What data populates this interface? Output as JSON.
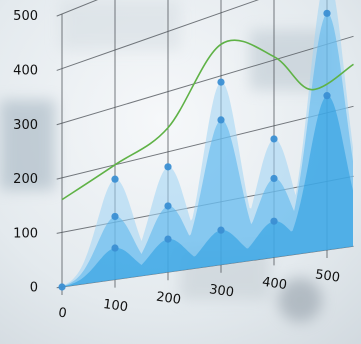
{
  "chart_data": {
    "type": "area",
    "title": "",
    "xlabel": "",
    "ylabel": "",
    "x_ticks": [
      0,
      100,
      200,
      300,
      400,
      500
    ],
    "y_ticks": [
      0,
      100,
      200,
      300,
      400,
      500
    ],
    "xlim": [
      0,
      550
    ],
    "ylim": [
      0,
      500
    ],
    "grid": true,
    "legend": "none",
    "series": [
      {
        "values": [
          [
            0,
            0
          ],
          [
            100,
            175
          ],
          [
            200,
            175
          ],
          [
            300,
            290
          ],
          [
            400,
            180
          ],
          [
            500,
            400
          ]
        ]
      },
      {
        "values": [
          [
            0,
            0
          ],
          [
            100,
            110
          ],
          [
            200,
            110
          ],
          [
            300,
            230
          ],
          [
            400,
            120
          ],
          [
            500,
            345
          ]
        ]
      },
      {
        "values": [
          [
            0,
            0
          ],
          [
            100,
            55
          ],
          [
            200,
            55
          ],
          [
            300,
            55
          ],
          [
            400,
            55
          ],
          [
            500,
            225
          ]
        ]
      },
      {
        "values": [
          [
            0,
            160
          ],
          [
            100,
            200
          ],
          [
            200,
            240
          ],
          [
            300,
            350
          ],
          [
            400,
            305
          ],
          [
            470,
            240
          ],
          [
            550,
            260
          ]
        ]
      }
    ],
    "colors": {
      "area_light": "#9fd4f4",
      "area_mid": "#55b4ec",
      "area_dark": "#1c97e0",
      "points": "#3b8fd3",
      "line": "#5fb246",
      "grid": "#4a4f55"
    }
  }
}
